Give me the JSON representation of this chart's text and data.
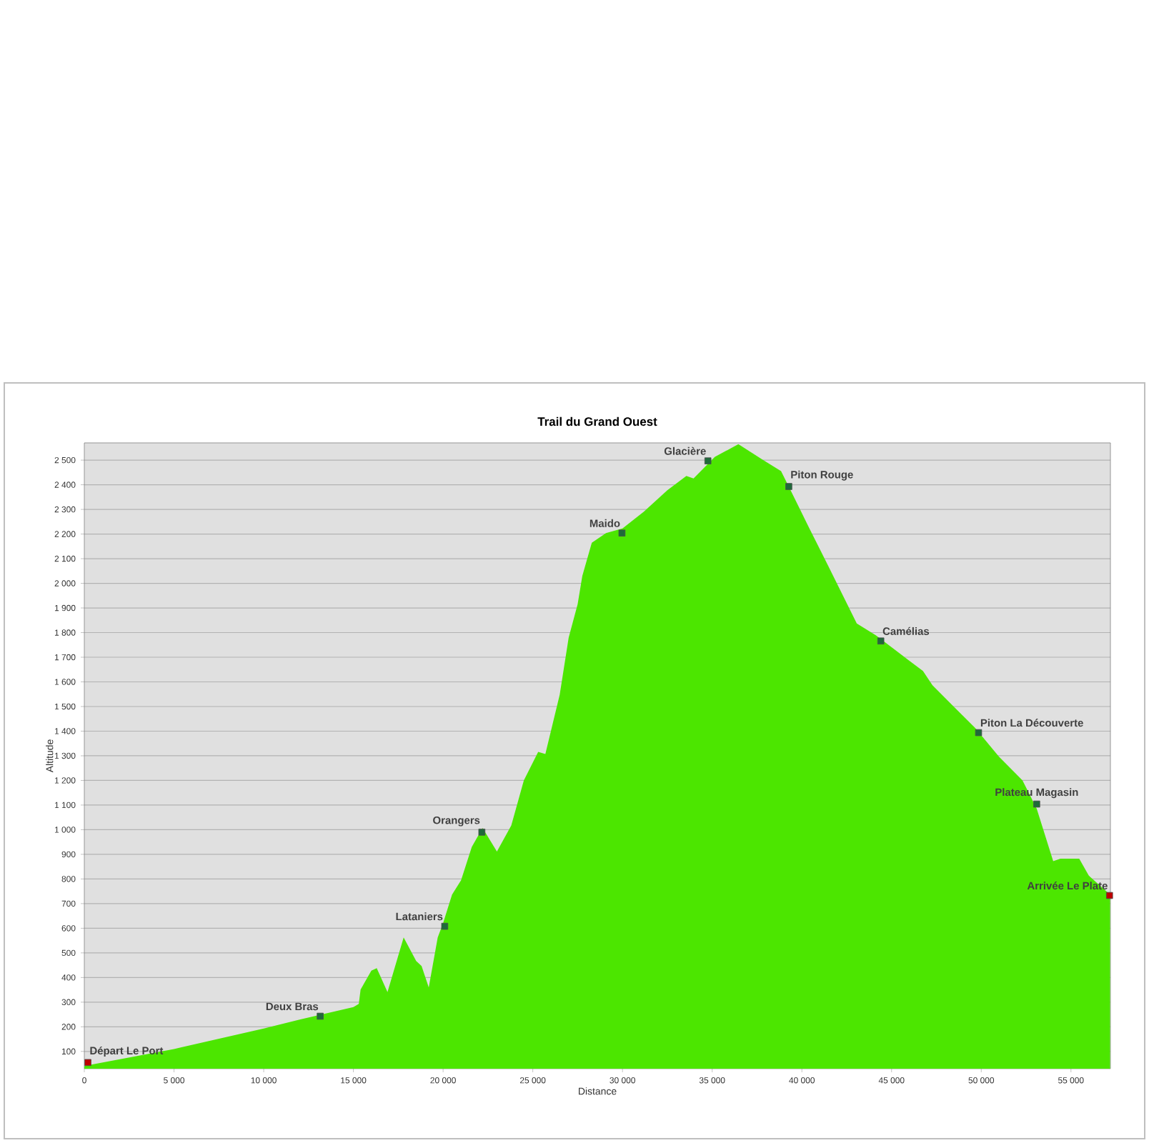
{
  "chart_data": {
    "type": "area",
    "title": "Trail du Grand Ouest",
    "xlabel": "Distance",
    "ylabel": "Altitude",
    "xlim": [
      0,
      57200
    ],
    "ylim": [
      30,
      2570
    ],
    "xticks": [
      0,
      {
        "value": 5000,
        "label": "5 000"
      },
      {
        "value": 10000,
        "label": "10 000"
      },
      {
        "value": 15000,
        "label": "15 000"
      },
      {
        "value": 20000,
        "label": "20 000"
      },
      {
        "value": 25000,
        "label": "25 000"
      },
      {
        "value": 30000,
        "label": "30 000"
      },
      {
        "value": 35000,
        "label": "35 000"
      },
      {
        "value": 40000,
        "label": "40 000"
      },
      {
        "value": 45000,
        "label": "45 000"
      },
      {
        "value": 50000,
        "label": "50 000"
      },
      {
        "value": 55000,
        "label": "55 000"
      }
    ],
    "yticks": [
      100,
      200,
      300,
      400,
      500,
      600,
      700,
      800,
      900,
      {
        "value": 1000,
        "label": "1 000"
      },
      {
        "value": 1100,
        "label": "1 100"
      },
      {
        "value": 1200,
        "label": "1 200"
      },
      {
        "value": 1300,
        "label": "1 300"
      },
      {
        "value": 1400,
        "label": "1 400"
      },
      {
        "value": 1500,
        "label": "1 500"
      },
      {
        "value": 1600,
        "label": "1 600"
      },
      {
        "value": 1700,
        "label": "1 700"
      },
      {
        "value": 1800,
        "label": "1 800"
      },
      {
        "value": 1900,
        "label": "1 900"
      },
      {
        "value": 2000,
        "label": "2 000"
      },
      {
        "value": 2100,
        "label": "2 100"
      },
      {
        "value": 2200,
        "label": "2 200"
      },
      {
        "value": 2300,
        "label": "2 300"
      },
      {
        "value": 2400,
        "label": "2 400"
      },
      {
        "value": 2500,
        "label": "2 500"
      }
    ],
    "grid": "y",
    "series": [
      {
        "color": "#4ce600",
        "x": [
          0,
          80,
          5000,
          10000,
          12000,
          15000,
          15300,
          15400,
          16000,
          16300,
          16900,
          17800,
          18500,
          18800,
          19200,
          19700,
          20000,
          20500,
          21000,
          21600,
          22200,
          23000,
          23800,
          24500,
          25300,
          25700,
          26500,
          27000,
          27500,
          27760,
          28290,
          29080,
          30000,
          31190,
          32500,
          33560,
          33960,
          35150,
          36460,
          37780,
          38840,
          39370,
          40420,
          41480,
          43060,
          44120,
          45170,
          46750,
          47280,
          48340,
          49660,
          50980,
          52300,
          53090,
          54010,
          54410,
          55460,
          55990,
          57180
        ],
        "values": [
          40,
          42,
          110,
          193,
          229,
          280,
          293,
          351,
          428,
          438,
          341,
          563,
          467,
          447,
          360,
          563,
          621,
          737,
          795,
          930,
          1007,
          911,
          1017,
          1200,
          1316,
          1307,
          1548,
          1780,
          1915,
          2030,
          2165,
          2204,
          2223,
          2291,
          2378,
          2436,
          2426,
          2513,
          2565,
          2503,
          2455,
          2378,
          2223,
          2069,
          1837,
          1789,
          1731,
          1644,
          1586,
          1509,
          1413,
          1297,
          1200,
          1085,
          872,
          882,
          882,
          814,
          737
        ]
      },
      {
        "type": "scatter",
        "marker": "square",
        "x": [
          200,
          13150,
          20090,
          22160,
          29970,
          34760,
          39270,
          44400,
          49850,
          53090,
          57150
        ],
        "values": [
          55,
          243,
          608,
          990,
          2204,
          2497,
          2393,
          1766,
          1394,
          1104,
          733
        ],
        "colors": [
          "#c00000",
          "#1f6b3a",
          "#1f6b3a",
          "#1f6b3a",
          "#1f6b3a",
          "#1f6b3a",
          "#1f6b3a",
          "#1f6b3a",
          "#1f6b3a",
          "#1f6b3a",
          "#c00000"
        ]
      }
    ],
    "annotations": [
      {
        "text": "Départ Le Port",
        "x": 200,
        "y": 55
      },
      {
        "text": "Deux Bras",
        "x": 13150,
        "y": 243
      },
      {
        "text": "Lataniers",
        "x": 20090,
        "y": 608
      },
      {
        "text": "Orangers",
        "x": 22160,
        "y": 990
      },
      {
        "text": "Maido",
        "x": 29970,
        "y": 2204
      },
      {
        "text": "Glacière",
        "x": 34760,
        "y": 2497
      },
      {
        "text": "Piton Rouge",
        "x": 39270,
        "y": 2393
      },
      {
        "text": "Camélias",
        "x": 44400,
        "y": 1766
      },
      {
        "text": "Piton La Découverte",
        "x": 49850,
        "y": 1394
      },
      {
        "text": "Plateau Magasin",
        "x": 53090,
        "y": 1104
      },
      {
        "text": "Arrivée Le Plate",
        "x": 57150,
        "y": 733
      }
    ]
  }
}
